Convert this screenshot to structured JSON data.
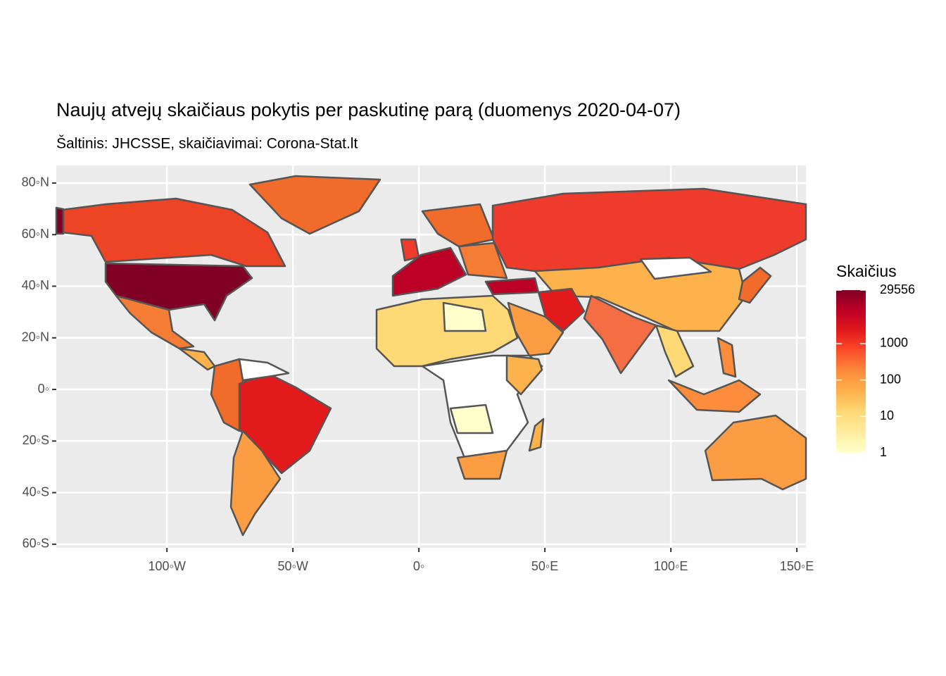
{
  "chart_data": {
    "type": "map",
    "title": "Naujų atvejų skaičiaus pokytis per paskutinę parą (duomenys 2020-04-07)",
    "subtitle": "Šaltinis: JHCSSE, skaičiavimai: Corona-Stat.lt",
    "xlim": [
      -143.9,
      153.6
    ],
    "ylim": [
      -61.4,
      86.8
    ],
    "xticks": [
      {
        "value": -100,
        "label": "100◦W"
      },
      {
        "value": -50,
        "label": "50◦W"
      },
      {
        "value": 0,
        "label": "0◦"
      },
      {
        "value": 50,
        "label": "50◦E"
      },
      {
        "value": 100,
        "label": "100◦E"
      },
      {
        "value": 150,
        "label": "150◦E"
      }
    ],
    "yticks": [
      {
        "value": -60,
        "label": "60◦S"
      },
      {
        "value": -40,
        "label": "40◦S"
      },
      {
        "value": -20,
        "label": "20◦S"
      },
      {
        "value": 0,
        "label": "0◦"
      },
      {
        "value": 20,
        "label": "20◦N"
      },
      {
        "value": 40,
        "label": "40◦N"
      },
      {
        "value": 60,
        "label": "60◦N"
      },
      {
        "value": 80,
        "label": "80◦N"
      }
    ],
    "grid": true,
    "legend": {
      "title": "Skaičius",
      "log": true,
      "lim": [
        1,
        29556
      ],
      "ticks": [
        1,
        10,
        100,
        1000,
        29556
      ],
      "colors": [
        "#ffffcc",
        "#ffeda0",
        "#fed976",
        "#feb24c",
        "#fd8d3c",
        "#fc4e2a",
        "#e31a1c",
        "#bd0026",
        "#800026"
      ]
    }
  }
}
